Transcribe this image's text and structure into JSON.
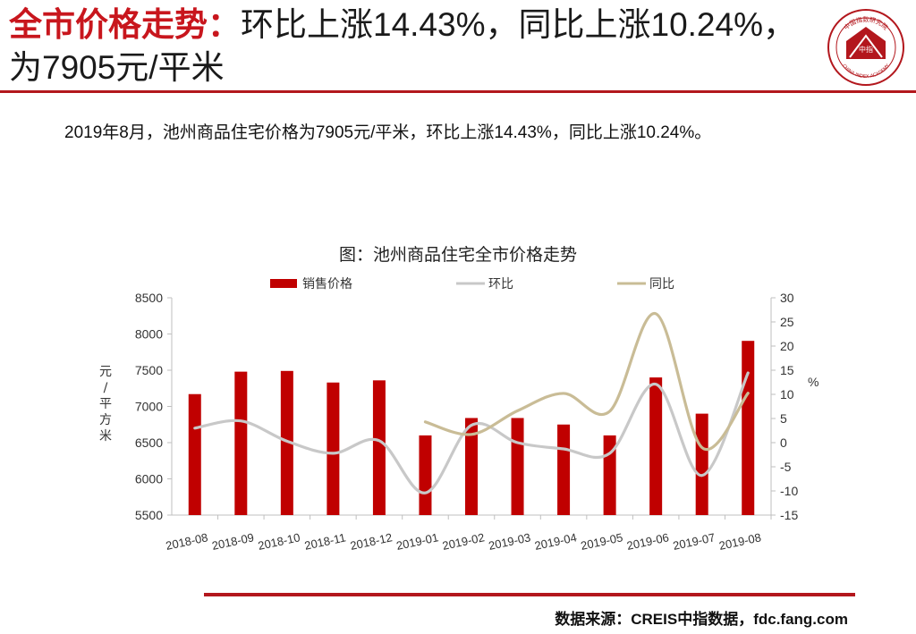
{
  "header": {
    "title_emphasis": "全市价格走势：",
    "title_rest": "环比上涨14.43%，同比上涨10.24%，为7905元/平米"
  },
  "logo": {
    "text_top": "中国指数研究院",
    "text_bottom": "CHINA INDEX ACADEMY",
    "center": "中指",
    "color": "#b3171d"
  },
  "summary": "2019年8月，池州商品住宅价格为7905元/平米，环比上涨14.43%，同比上涨10.24%。",
  "chart_title": "图：池州商品住宅全市价格走势",
  "footer": {
    "source": "数据来源：CREIS中指数据，fdc.fang.com"
  },
  "chart_data": {
    "type": "bar",
    "categories": [
      "2018-08",
      "2018-09",
      "2018-10",
      "2018-11",
      "2018-12",
      "2019-01",
      "2019-02",
      "2019-03",
      "2019-04",
      "2019-05",
      "2019-06",
      "2019-07",
      "2019-08"
    ],
    "y_left": {
      "label_chars": [
        "元",
        "/",
        "平",
        "方",
        "米"
      ],
      "ylim": [
        5500,
        8500
      ],
      "ticks": [
        "8500",
        "8000",
        "7500",
        "7000",
        "6500",
        "6000",
        "5500"
      ]
    },
    "y_right": {
      "label": "%",
      "ylim": [
        -15,
        30
      ],
      "ticks": [
        "30",
        "25",
        "20",
        "15",
        "10",
        "5",
        "0",
        "-5",
        "-10",
        "-15"
      ]
    },
    "legend": {
      "position": "top"
    },
    "series": [
      {
        "name": "销售价格",
        "type": "bar",
        "axis": "left",
        "color": "#c00000",
        "values": [
          7170,
          7480,
          7490,
          7330,
          7360,
          6600,
          6840,
          6840,
          6750,
          6600,
          7400,
          6900,
          7905
        ]
      },
      {
        "name": "环比",
        "type": "line",
        "axis": "right",
        "color": "#c8c8c8",
        "values": [
          3.0,
          4.5,
          0.3,
          -2.2,
          0.4,
          -10.4,
          3.6,
          0.0,
          -1.3,
          -2.2,
          12.1,
          -6.8,
          14.43
        ]
      },
      {
        "name": "同比",
        "type": "line",
        "axis": "right",
        "color": "#c9bc96",
        "values": [
          null,
          null,
          null,
          null,
          null,
          4.3,
          1.7,
          6.6,
          10.2,
          6.5,
          26.7,
          -1.0,
          10.24
        ]
      }
    ]
  }
}
